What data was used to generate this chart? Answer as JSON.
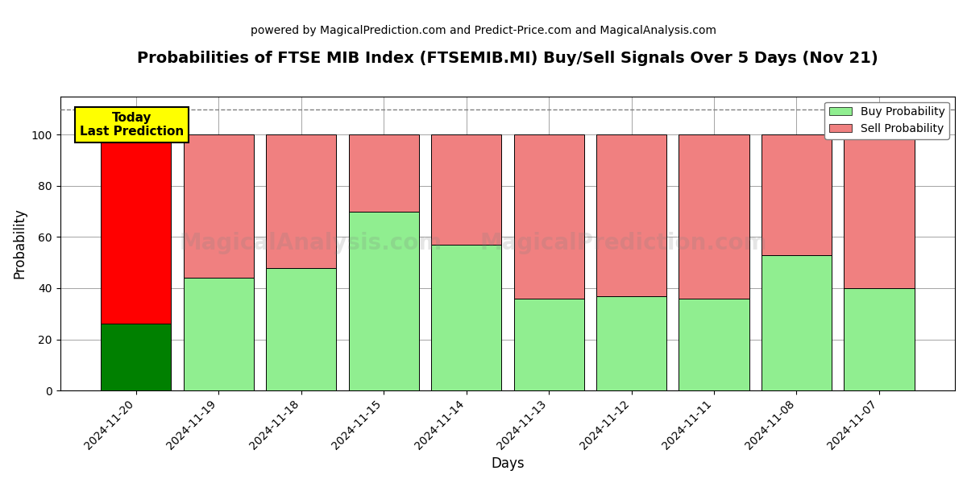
{
  "title": "Probabilities of FTSE MIB Index (FTSEMIB.MI) Buy/Sell Signals Over 5 Days (Nov 21)",
  "subtitle": "powered by MagicalPrediction.com and Predict-Price.com and MagicalAnalysis.com",
  "xlabel": "Days",
  "ylabel": "Probability",
  "dates": [
    "2024-11-20",
    "2024-11-19",
    "2024-11-18",
    "2024-11-15",
    "2024-11-14",
    "2024-11-13",
    "2024-11-12",
    "2024-11-11",
    "2024-11-08",
    "2024-11-07"
  ],
  "buy_values": [
    26,
    44,
    48,
    70,
    57,
    36,
    37,
    36,
    53,
    40
  ],
  "sell_values": [
    74,
    56,
    52,
    30,
    43,
    64,
    63,
    64,
    47,
    60
  ],
  "today_buy_color": "#008000",
  "today_sell_color": "#ff0000",
  "other_buy_color": "#90EE90",
  "other_sell_color": "#F08080",
  "today_label_bg": "#ffff00",
  "dashed_line_y": 110,
  "ylim": [
    0,
    115
  ],
  "yticks": [
    0,
    20,
    40,
    60,
    80,
    100
  ],
  "background_color": "#ffffff",
  "legend_buy_label": "Buy Probability",
  "legend_sell_label": "Sell Probability",
  "figsize": [
    12,
    6
  ],
  "dpi": 100
}
